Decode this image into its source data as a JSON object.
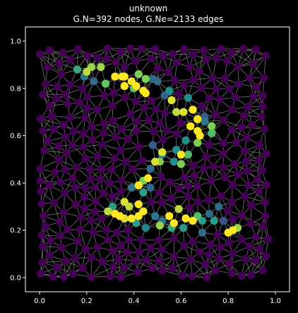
{
  "chart_data": {
    "type": "scatter",
    "title": "unknown",
    "subtitle": "G.N=392 nodes, G.Ne=2133 edges",
    "xlim": [
      -0.06,
      1.06
    ],
    "ylim": [
      -0.06,
      1.06
    ],
    "xticks": [
      0.0,
      0.2,
      0.4,
      0.6,
      0.8,
      1.0
    ],
    "yticks": [
      0.0,
      0.2,
      0.4,
      0.6,
      0.8,
      1.0
    ],
    "xtick_labels": [
      "0.0",
      "0.2",
      "0.4",
      "0.6",
      "0.8",
      "1.0"
    ],
    "ytick_labels": [
      "0.0",
      "0.2",
      "0.4",
      "0.6",
      "0.8",
      "1.0"
    ],
    "colormap": [
      "#440154",
      "#3b528b",
      "#21908d",
      "#5dc963",
      "#fde725"
    ],
    "edge_color": "#9a9a9a",
    "background": "#000000",
    "grid": false,
    "highlighted_nodes": [
      {
        "x": 0.16,
        "y": 0.88,
        "v": 0.6
      },
      {
        "x": 0.2,
        "y": 0.87,
        "v": 0.9
      },
      {
        "x": 0.22,
        "y": 0.89,
        "v": 0.85
      },
      {
        "x": 0.26,
        "y": 0.89,
        "v": 0.85
      },
      {
        "x": 0.23,
        "y": 0.83,
        "v": 0.35
      },
      {
        "x": 0.19,
        "y": 0.85,
        "v": 0.4
      },
      {
        "x": 0.28,
        "y": 0.82,
        "v": 0.75
      },
      {
        "x": 0.32,
        "y": 0.85,
        "v": 1.0
      },
      {
        "x": 0.35,
        "y": 0.85,
        "v": 1.0
      },
      {
        "x": 0.36,
        "y": 0.85,
        "v": 1.0
      },
      {
        "x": 0.39,
        "y": 0.83,
        "v": 1.0
      },
      {
        "x": 0.41,
        "y": 0.81,
        "v": 1.0
      },
      {
        "x": 0.42,
        "y": 0.86,
        "v": 0.8
      },
      {
        "x": 0.36,
        "y": 0.81,
        "v": 1.0
      },
      {
        "x": 0.4,
        "y": 0.8,
        "v": 0.75
      },
      {
        "x": 0.45,
        "y": 0.84,
        "v": 0.8
      },
      {
        "x": 0.44,
        "y": 0.79,
        "v": 1.0
      },
      {
        "x": 0.45,
        "y": 0.78,
        "v": 1.0
      },
      {
        "x": 0.48,
        "y": 0.84,
        "v": 0.35
      },
      {
        "x": 0.5,
        "y": 0.83,
        "v": 0.35
      },
      {
        "x": 0.55,
        "y": 0.79,
        "v": 0.5
      },
      {
        "x": 0.56,
        "y": 0.75,
        "v": 0.95
      },
      {
        "x": 0.58,
        "y": 0.7,
        "v": 0.9
      },
      {
        "x": 0.61,
        "y": 0.7,
        "v": 0.95
      },
      {
        "x": 0.65,
        "y": 0.71,
        "v": 1.0
      },
      {
        "x": 0.63,
        "y": 0.76,
        "v": 0.5
      },
      {
        "x": 0.67,
        "y": 0.67,
        "v": 1.0
      },
      {
        "x": 0.7,
        "y": 0.66,
        "v": 0.4
      },
      {
        "x": 0.64,
        "y": 0.64,
        "v": 1.0
      },
      {
        "x": 0.67,
        "y": 0.62,
        "v": 1.0
      },
      {
        "x": 0.68,
        "y": 0.6,
        "v": 1.0
      },
      {
        "x": 0.73,
        "y": 0.64,
        "v": 0.8
      },
      {
        "x": 0.73,
        "y": 0.61,
        "v": 0.7
      },
      {
        "x": 0.67,
        "y": 0.57,
        "v": 0.8
      },
      {
        "x": 0.62,
        "y": 0.58,
        "v": 0.5
      },
      {
        "x": 0.6,
        "y": 0.52,
        "v": 1.0
      },
      {
        "x": 0.63,
        "y": 0.52,
        "v": 0.7
      },
      {
        "x": 0.58,
        "y": 0.54,
        "v": 0.5
      },
      {
        "x": 0.57,
        "y": 0.49,
        "v": 0.5
      },
      {
        "x": 0.52,
        "y": 0.52,
        "v": 0.4
      },
      {
        "x": 0.49,
        "y": 0.49,
        "v": 0.95
      },
      {
        "x": 0.51,
        "y": 0.49,
        "v": 0.8
      },
      {
        "x": 0.52,
        "y": 0.53,
        "v": 0.95
      },
      {
        "x": 0.47,
        "y": 0.46,
        "v": 0.35
      },
      {
        "x": 0.44,
        "y": 0.41,
        "v": 0.8
      },
      {
        "x": 0.46,
        "y": 0.42,
        "v": 1.0
      },
      {
        "x": 0.42,
        "y": 0.39,
        "v": 1.0
      },
      {
        "x": 0.44,
        "y": 0.36,
        "v": 0.55
      },
      {
        "x": 0.39,
        "y": 0.38,
        "v": 0.4
      },
      {
        "x": 0.47,
        "y": 0.38,
        "v": 0.35
      },
      {
        "x": 0.42,
        "y": 0.31,
        "v": 1.0
      },
      {
        "x": 0.38,
        "y": 0.3,
        "v": 0.9
      },
      {
        "x": 0.36,
        "y": 0.32,
        "v": 0.95
      },
      {
        "x": 0.32,
        "y": 0.27,
        "v": 1.0
      },
      {
        "x": 0.34,
        "y": 0.26,
        "v": 1.0
      },
      {
        "x": 0.29,
        "y": 0.28,
        "v": 0.9
      },
      {
        "x": 0.36,
        "y": 0.25,
        "v": 0.95
      },
      {
        "x": 0.39,
        "y": 0.25,
        "v": 1.0
      },
      {
        "x": 0.42,
        "y": 0.26,
        "v": 1.0
      },
      {
        "x": 0.44,
        "y": 0.28,
        "v": 1.0
      },
      {
        "x": 0.41,
        "y": 0.23,
        "v": 0.55
      },
      {
        "x": 0.45,
        "y": 0.21,
        "v": 0.45
      },
      {
        "x": 0.49,
        "y": 0.26,
        "v": 0.4
      },
      {
        "x": 0.51,
        "y": 0.22,
        "v": 0.85
      },
      {
        "x": 0.52,
        "y": 0.24,
        "v": 0.4
      },
      {
        "x": 0.55,
        "y": 0.26,
        "v": 1.0
      },
      {
        "x": 0.57,
        "y": 0.23,
        "v": 1.0
      },
      {
        "x": 0.59,
        "y": 0.29,
        "v": 0.9
      },
      {
        "x": 0.62,
        "y": 0.25,
        "v": 1.0
      },
      {
        "x": 0.65,
        "y": 0.24,
        "v": 1.0
      },
      {
        "x": 0.67,
        "y": 0.26,
        "v": 0.7
      },
      {
        "x": 0.69,
        "y": 0.24,
        "v": 0.55
      },
      {
        "x": 0.72,
        "y": 0.27,
        "v": 0.35
      },
      {
        "x": 0.74,
        "y": 0.24,
        "v": 0.55
      },
      {
        "x": 0.76,
        "y": 0.3,
        "v": 0.35
      },
      {
        "x": 0.78,
        "y": 0.24,
        "v": 0.25
      },
      {
        "x": 0.8,
        "y": 0.19,
        "v": 1.0
      },
      {
        "x": 0.82,
        "y": 0.2,
        "v": 1.0
      },
      {
        "x": 0.84,
        "y": 0.21,
        "v": 0.85
      },
      {
        "x": 0.69,
        "y": 0.19,
        "v": 0.35
      },
      {
        "x": 0.61,
        "y": 0.21,
        "v": 0.55
      },
      {
        "x": 0.56,
        "y": 0.21,
        "v": 0.6
      },
      {
        "x": 0.31,
        "y": 0.3,
        "v": 0.55
      },
      {
        "x": 0.6,
        "y": 0.48,
        "v": 0.8
      },
      {
        "x": 0.48,
        "y": 0.56,
        "v": 0.3
      },
      {
        "x": 0.7,
        "y": 0.68,
        "v": 0.3
      },
      {
        "x": 0.53,
        "y": 0.77,
        "v": 0.3
      }
    ]
  }
}
